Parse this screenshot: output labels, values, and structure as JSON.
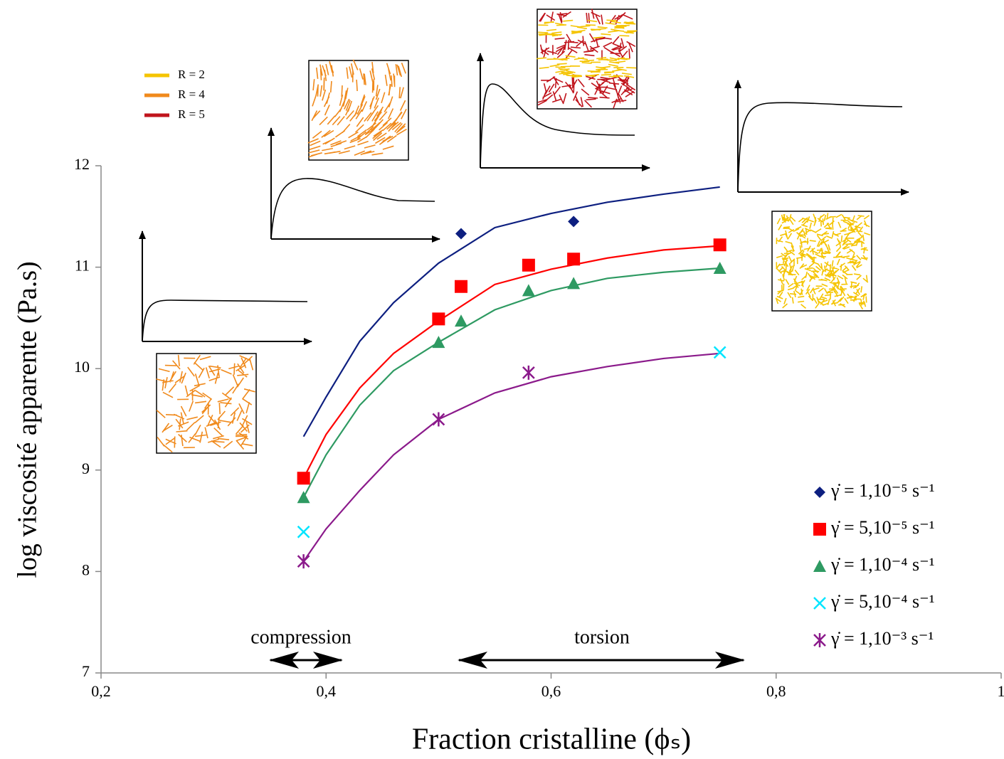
{
  "chart_data": {
    "type": "scatter",
    "xlabel": "Fraction cristalline (ϕₛ)",
    "ylabel": "log viscosité apparente (Pa.s)",
    "xlim": [
      0.2,
      1
    ],
    "ylim": [
      7,
      12
    ],
    "xticks": [
      {
        "value": 0.2,
        "label": "0,2"
      },
      {
        "value": 0.4,
        "label": "0,4"
      },
      {
        "value": 0.6,
        "label": "0,6"
      },
      {
        "value": 0.8,
        "label": "0,8"
      },
      1
    ],
    "yticks": [
      7,
      8,
      9,
      10,
      11,
      12
    ],
    "legend": "lower right",
    "annotations": [
      "compression",
      "torsion"
    ],
    "inset_legend": [
      {
        "name": "R = 2",
        "color": "#f5c400"
      },
      {
        "name": "R = 4",
        "color": "#f08a1c"
      },
      {
        "name": "R = 5",
        "color": "#c0141c"
      }
    ],
    "series": [
      {
        "name": "γ̇ = 1,10⁻⁵ s⁻¹",
        "color": "#0d1f80",
        "marker": "diamond",
        "x": [
          0.52,
          0.62
        ],
        "values": [
          11.33,
          11.45
        ],
        "fit": {
          "x": [
            0.38,
            0.4,
            0.43,
            0.46,
            0.5,
            0.55,
            0.6,
            0.65,
            0.7,
            0.75
          ],
          "values": [
            9.33,
            9.72,
            10.27,
            10.65,
            11.04,
            11.39,
            11.53,
            11.64,
            11.72,
            11.79
          ]
        }
      },
      {
        "name": "γ̇ = 5,10⁻⁵ s⁻¹",
        "color": "#ff0000",
        "marker": "square",
        "x": [
          0.38,
          0.5,
          0.52,
          0.58,
          0.62,
          0.75
        ],
        "values": [
          8.92,
          10.49,
          10.81,
          11.02,
          11.08,
          11.22
        ],
        "fit": {
          "x": [
            0.38,
            0.4,
            0.43,
            0.46,
            0.5,
            0.55,
            0.6,
            0.65,
            0.7,
            0.75
          ],
          "values": [
            8.92,
            9.35,
            9.81,
            10.15,
            10.47,
            10.83,
            10.98,
            11.09,
            11.17,
            11.21
          ]
        }
      },
      {
        "name": "γ̇ = 1,10⁻⁴ s⁻¹",
        "color": "#2e9a62",
        "marker": "triangle",
        "x": [
          0.38,
          0.5,
          0.52,
          0.58,
          0.62,
          0.75
        ],
        "values": [
          8.73,
          10.26,
          10.47,
          10.77,
          10.84,
          10.99
        ],
        "fit": {
          "x": [
            0.38,
            0.4,
            0.43,
            0.46,
            0.5,
            0.55,
            0.6,
            0.65,
            0.7,
            0.75
          ],
          "values": [
            8.73,
            9.15,
            9.64,
            9.98,
            10.26,
            10.58,
            10.77,
            10.89,
            10.95,
            10.99
          ]
        }
      },
      {
        "name": "γ̇ = 5,10⁻⁴ s⁻¹",
        "color": "#00e5ff",
        "marker": "x",
        "x": [
          0.38,
          0.75
        ],
        "values": [
          8.39,
          10.16
        ]
      },
      {
        "name": "γ̇ = 1,10⁻³ s⁻¹",
        "color": "#8b1a8b",
        "marker": "star",
        "x": [
          0.38,
          0.5,
          0.58
        ],
        "values": [
          8.1,
          9.5,
          9.96
        ],
        "fit": {
          "x": [
            0.38,
            0.4,
            0.43,
            0.46,
            0.5,
            0.55,
            0.6,
            0.65,
            0.7,
            0.75
          ],
          "values": [
            8.1,
            8.42,
            8.8,
            9.15,
            9.5,
            9.76,
            9.92,
            10.02,
            10.1,
            10.15
          ]
        }
      }
    ]
  }
}
